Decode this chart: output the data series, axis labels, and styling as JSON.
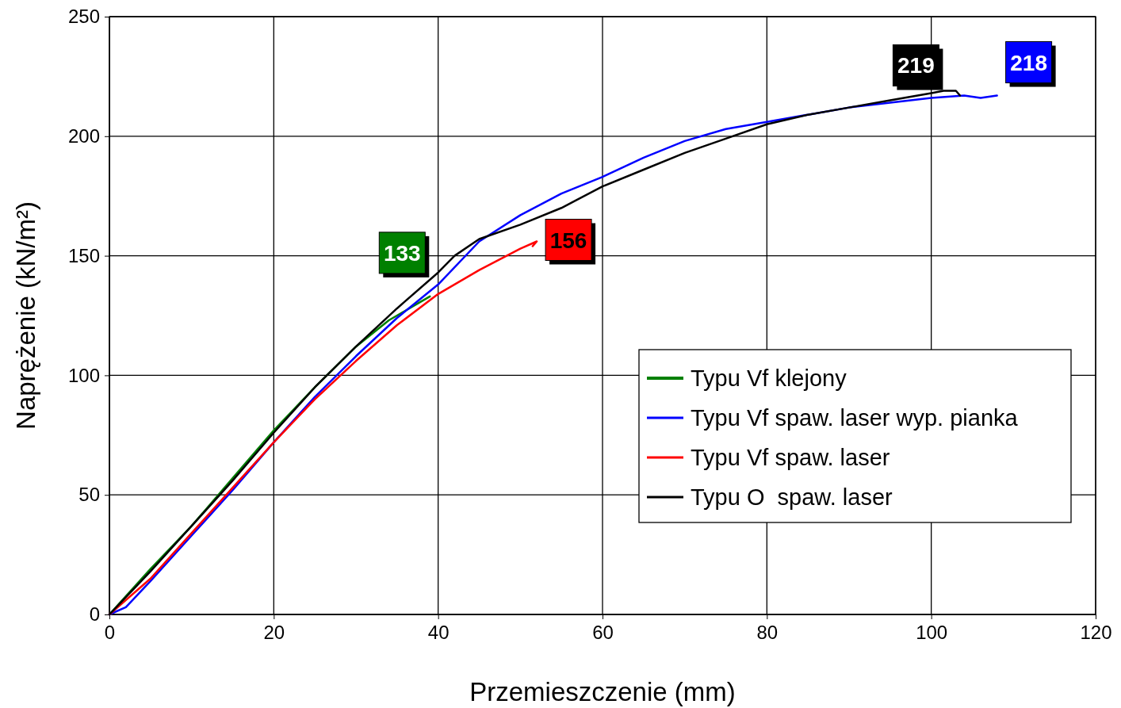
{
  "chart_data": {
    "type": "line",
    "xlabel": "Przemieszczenie (mm)",
    "ylabel": "Naprężenie (kN/m²)",
    "xlim": [
      0,
      120
    ],
    "xticks": [
      0,
      20,
      40,
      60,
      80,
      100,
      120
    ],
    "ylim": [
      0,
      250
    ],
    "yticks": [
      0,
      50,
      100,
      150,
      200,
      250
    ],
    "grid": true,
    "legend": "bottom right",
    "marker": "none",
    "line_style": "solid",
    "series": [
      {
        "name": "Typu Vf klejony",
        "color": "#008000",
        "x": [
          0,
          5,
          10,
          15,
          20,
          25,
          30,
          34,
          37,
          39
        ],
        "values": [
          0,
          19,
          37,
          57,
          77,
          95,
          112,
          123,
          129,
          133
        ]
      },
      {
        "name": "Typu Vf spaw. laser wyp. pianka",
        "color": "#0000ff",
        "x": [
          0,
          2,
          5,
          10,
          15,
          20,
          25,
          30,
          35,
          40,
          45,
          50,
          55,
          60,
          65,
          70,
          75,
          80,
          85,
          90,
          95,
          100,
          104,
          106,
          108
        ],
        "values": [
          0,
          3,
          14,
          33,
          52,
          72,
          91,
          108,
          124,
          138,
          156,
          167,
          176,
          183,
          191,
          198,
          203,
          206,
          209,
          212,
          214,
          216,
          217,
          216,
          217
        ]
      },
      {
        "name": "Typu Vf spaw. laser",
        "color": "#ff0000",
        "x": [
          0,
          5,
          10,
          15,
          20,
          25,
          30,
          35,
          40,
          45,
          50,
          52,
          51.5
        ],
        "values": [
          0,
          15,
          34,
          53,
          72,
          90,
          106,
          121,
          134,
          144,
          153,
          156,
          154
        ]
      },
      {
        "name": "Typu O  spaw. laser",
        "color": "#000000",
        "x": [
          0,
          5,
          10,
          15,
          20,
          25,
          30,
          35,
          40,
          42,
          45,
          50,
          55,
          60,
          65,
          70,
          75,
          80,
          85,
          90,
          95,
          100,
          101.5,
          103,
          103.5
        ],
        "values": [
          0,
          18,
          37,
          56,
          76,
          95,
          112,
          128,
          143,
          150,
          157,
          163,
          170,
          179,
          186,
          193,
          199,
          205,
          209,
          212,
          215,
          218,
          219,
          219,
          217
        ]
      }
    ],
    "annotations": [
      {
        "text": "133",
        "x": 39,
        "y": 133
      },
      {
        "text": "218",
        "x": 108,
        "y": 217
      },
      {
        "text": "156",
        "x": 52,
        "y": 156
      },
      {
        "text": "219",
        "x": 102,
        "y": 219
      }
    ]
  }
}
